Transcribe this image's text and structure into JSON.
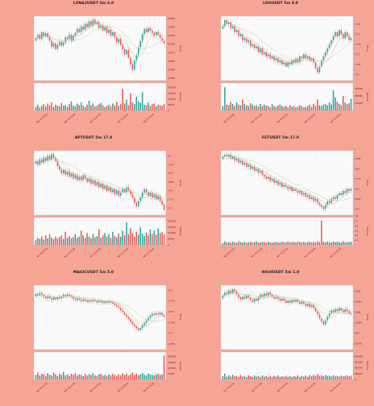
{
  "page": {
    "background": "#f6a595",
    "axes_background": "#fafafa",
    "grid_color": "#dddddd",
    "up_color": "#26a69a",
    "down_color": "#ef5350",
    "ma_colors": [
      "#9e9e9e",
      "#c8b26e",
      "#a6cfa0"
    ],
    "label_color": "#6a0f33"
  },
  "chart_data": [
    {
      "type": "candlestick",
      "title": "LUNA2USDT 5m 6.0",
      "ylabel": "Price",
      "volume_label": "Volume",
      "y_ticks": [
        0.5055,
        0.5045,
        0.5035,
        0.5025,
        0.5015,
        0.5005,
        0.4995,
        0.4985
      ],
      "ylim": [
        0.4982,
        0.5058
      ],
      "volume_ticks": [
        "200000",
        "150000",
        "100000",
        "50000",
        "0"
      ],
      "volume_max": 240000,
      "x_ticks": [
        "Apr 26 00:00",
        "Apr 26 01:00",
        "Apr 26 02:00",
        "Apr 26 03:00",
        "Apr 26 04:00"
      ],
      "closes": [
        0.5032,
        0.5036,
        0.5031,
        0.5039,
        0.5034,
        0.5038,
        0.5033,
        0.5029,
        0.5022,
        0.5026,
        0.5019,
        0.5024,
        0.5028,
        0.5023,
        0.5027,
        0.5033,
        0.5031,
        0.5036,
        0.5029,
        0.5035,
        0.5038,
        0.5043,
        0.5039,
        0.5046,
        0.5042,
        0.5049,
        0.5045,
        0.5052,
        0.5047,
        0.5054,
        0.5049,
        0.5051,
        0.5044,
        0.5047,
        0.5041,
        0.5045,
        0.5038,
        0.5042,
        0.5035,
        0.5039,
        0.5033,
        0.5027,
        0.5031,
        0.5024,
        0.5019,
        0.5013,
        0.5018,
        0.5009,
        0.5001,
        0.4995,
        0.5006,
        0.5012,
        0.5021,
        0.5029,
        0.5037,
        0.5043,
        0.5039,
        0.5044,
        0.5041,
        0.5038,
        0.5035,
        0.5039,
        0.5036,
        0.5032,
        0.5029,
        0.5026
      ],
      "volumes": [
        30000,
        50000,
        25000,
        40000,
        55000,
        35000,
        60000,
        45000,
        70000,
        30000,
        50000,
        40000,
        35000,
        65000,
        40000,
        45000,
        30000,
        55000,
        80000,
        40000,
        35000,
        60000,
        45000,
        70000,
        40000,
        30000,
        50000,
        85000,
        45000,
        60000,
        35000,
        40000,
        55000,
        65000,
        45000,
        30000,
        40000,
        50000,
        35000,
        60000,
        45000,
        75000,
        40000,
        55000,
        190000,
        60000,
        95000,
        45000,
        150000,
        70000,
        55000,
        120000,
        80000,
        65000,
        160000,
        50000,
        45000,
        70000,
        40000,
        55000,
        60000,
        35000,
        50000,
        45000,
        40000,
        55000
      ]
    },
    {
      "type": "candlestick",
      "title": "LDOUSDT 5m 8.0",
      "ylabel": "Price",
      "volume_label": "Volume",
      "y_ticks": [
        2.745,
        2.74,
        2.735,
        2.73,
        2.725,
        2.72
      ],
      "ylim": [
        2.717,
        2.749
      ],
      "volume_ticks": [
        "300000",
        "200000",
        "100000"
      ],
      "volume_max": 380000,
      "x_ticks": [
        "Apr 26 00:00",
        "Apr 26 01:00",
        "Apr 26 02:00",
        "Apr 26 03:00",
        "Apr 26 04:00"
      ],
      "closes": [
        2.744,
        2.747,
        2.745,
        2.746,
        2.743,
        2.744,
        2.741,
        2.742,
        2.739,
        2.74,
        2.737,
        2.738,
        2.736,
        2.737,
        2.734,
        2.735,
        2.733,
        2.734,
        2.731,
        2.733,
        2.73,
        2.731,
        2.729,
        2.73,
        2.728,
        2.729,
        2.727,
        2.728,
        2.726,
        2.727,
        2.725,
        2.726,
        2.724,
        2.726,
        2.725,
        2.727,
        2.726,
        2.728,
        2.726,
        2.729,
        2.728,
        2.73,
        2.728,
        2.729,
        2.727,
        2.728,
        2.726,
        2.723,
        2.721,
        2.724,
        2.727,
        2.729,
        2.731,
        2.733,
        2.735,
        2.737,
        2.739,
        2.741,
        2.739,
        2.742,
        2.74,
        2.738,
        2.741,
        2.739,
        2.737,
        2.738
      ],
      "volumes": [
        60000,
        320000,
        80000,
        70000,
        120000,
        90000,
        60000,
        110000,
        80000,
        70000,
        150000,
        90000,
        70000,
        60000,
        100000,
        80000,
        60000,
        70000,
        50000,
        90000,
        60000,
        80000,
        70000,
        60000,
        40000,
        90000,
        60000,
        50000,
        70000,
        80000,
        60000,
        50000,
        60000,
        40000,
        70000,
        50000,
        60000,
        40000,
        50000,
        70000,
        60000,
        40000,
        50000,
        60000,
        80000,
        50000,
        90000,
        60000,
        150000,
        70000,
        60000,
        80000,
        90000,
        70000,
        110000,
        80000,
        280000,
        180000,
        120000,
        90000,
        70000,
        200000,
        110000,
        90000,
        100000,
        160000
      ]
    },
    {
      "type": "candlestick",
      "title": "APTUSDT 5m 17.0",
      "ylabel": "Price",
      "volume_label": "Volume",
      "y_ticks": [
        5.8,
        5.795,
        5.79,
        5.785,
        5.78,
        5.775,
        5.77
      ],
      "ylim": [
        5.766,
        5.803
      ],
      "volume_ticks": [
        "200000",
        "150000",
        "100000",
        "50000",
        "0"
      ],
      "volume_max": 230000,
      "x_ticks": [
        "Apr 26 00:00",
        "Apr 26 01:00",
        "Apr 26 02:00",
        "Apr 26 03:00",
        "Apr 26 04:00"
      ],
      "closes": [
        5.797,
        5.795,
        5.798,
        5.796,
        5.799,
        5.797,
        5.8,
        5.798,
        5.801,
        5.799,
        5.797,
        5.794,
        5.792,
        5.79,
        5.792,
        5.789,
        5.791,
        5.788,
        5.79,
        5.787,
        5.789,
        5.786,
        5.788,
        5.786,
        5.789,
        5.787,
        5.785,
        5.787,
        5.784,
        5.786,
        5.783,
        5.785,
        5.782,
        5.784,
        5.781,
        5.783,
        5.78,
        5.782,
        5.779,
        5.781,
        5.778,
        5.78,
        5.777,
        5.779,
        5.781,
        5.779,
        5.782,
        5.78,
        5.778,
        5.776,
        5.773,
        5.771,
        5.774,
        5.776,
        5.779,
        5.781,
        5.779,
        5.777,
        5.779,
        5.776,
        5.778,
        5.775,
        5.777,
        5.774,
        5.772,
        5.769
      ],
      "volumes": [
        40000,
        60000,
        50000,
        70000,
        45000,
        80000,
        55000,
        90000,
        60000,
        50000,
        70000,
        55000,
        65000,
        80000,
        50000,
        110000,
        60000,
        75000,
        55000,
        65000,
        90000,
        60000,
        70000,
        120000,
        80000,
        60000,
        100000,
        70000,
        55000,
        90000,
        65000,
        75000,
        130000,
        60000,
        80000,
        100000,
        70000,
        90000,
        60000,
        110000,
        75000,
        65000,
        95000,
        70000,
        120000,
        80000,
        190000,
        90000,
        140000,
        100000,
        70000,
        110000,
        85000,
        150000,
        95000,
        75000,
        105000,
        80000,
        130000,
        90000,
        120000,
        85000,
        140000,
        100000,
        110000,
        90000
      ]
    },
    {
      "type": "candlestick",
      "title": "FETUSDT 5m 17.0",
      "ylabel": "Price",
      "volume_label": "Volume",
      "y_ticks": [
        2.045,
        2.04,
        2.035,
        2.03,
        2.025,
        2.02
      ],
      "ylim": [
        2.017,
        2.049
      ],
      "volume_ticks": [
        "1.0",
        "0.8",
        "0.6",
        "0.4",
        "0.2"
      ],
      "volume_exponent": "1e6",
      "volume_max": 1.15,
      "x_ticks": [
        "Apr 26 00:00",
        "Apr 26 01:00",
        "Apr 26 02:00",
        "Apr 26 03:00",
        "Apr 26 04:00"
      ],
      "closes": [
        2.046,
        2.047,
        2.046,
        2.047,
        2.045,
        2.046,
        2.044,
        2.045,
        2.043,
        2.044,
        2.042,
        2.043,
        2.041,
        2.042,
        2.04,
        2.041,
        2.039,
        2.04,
        2.038,
        2.039,
        2.037,
        2.036,
        2.035,
        2.036,
        2.034,
        2.035,
        2.033,
        2.034,
        2.032,
        2.033,
        2.031,
        2.032,
        2.031,
        2.03,
        2.031,
        2.029,
        2.03,
        2.029,
        2.028,
        2.029,
        2.027,
        2.028,
        2.026,
        2.027,
        2.025,
        2.026,
        2.024,
        2.025,
        2.023,
        2.022,
        2.021,
        2.02,
        2.022,
        2.024,
        2.023,
        2.025,
        2.026,
        2.025,
        2.027,
        2.028,
        2.027,
        2.029,
        2.028,
        2.03,
        2.029,
        2.03
      ],
      "volumes": [
        0.08,
        0.15,
        0.1,
        0.12,
        0.09,
        0.14,
        0.11,
        0.1,
        0.16,
        0.12,
        0.1,
        0.13,
        0.09,
        0.11,
        0.14,
        0.1,
        0.12,
        0.15,
        0.11,
        0.1,
        0.13,
        0.12,
        0.09,
        0.14,
        0.11,
        0.1,
        0.12,
        0.13,
        0.1,
        0.11,
        0.14,
        0.12,
        0.1,
        0.15,
        0.11,
        0.12,
        0.13,
        0.1,
        0.14,
        0.12,
        0.11,
        0.13,
        0.1,
        0.12,
        0.14,
        0.11,
        0.13,
        0.1,
        0.15,
        0.12,
        1.02,
        0.14,
        0.11,
        0.13,
        0.12,
        0.1,
        0.14,
        0.11,
        0.13,
        0.12,
        0.1,
        0.15,
        0.11,
        0.13,
        0.12,
        0.14
      ]
    },
    {
      "type": "candlestick",
      "title": "MAGICUSDT 5m 5.0",
      "ylabel": "Price",
      "volume_label": "Volume",
      "y_ticks": [
        0.74,
        0.7375,
        0.735,
        0.7325,
        0.73,
        0.7275
      ],
      "ylim": [
        0.7262,
        0.7412
      ],
      "volume_ticks": [
        "200000",
        "150000",
        "100000",
        "50000"
      ],
      "volume_max": 240000,
      "x_ticks": [
        "Apr 26 00:00",
        "Apr 26 01:00",
        "Apr 26 02:00",
        "Apr 26 03:00",
        "Apr 26 04:00"
      ],
      "closes": [
        0.7392,
        0.7388,
        0.7394,
        0.7389,
        0.7385,
        0.7381,
        0.7386,
        0.7382,
        0.7378,
        0.7383,
        0.7379,
        0.7384,
        0.7381,
        0.7386,
        0.739,
        0.7387,
        0.7391,
        0.7388,
        0.7385,
        0.738,
        0.7377,
        0.7381,
        0.7378,
        0.7375,
        0.7379,
        0.7376,
        0.7373,
        0.7377,
        0.7374,
        0.7378,
        0.7375,
        0.7372,
        0.7376,
        0.7373,
        0.737,
        0.7374,
        0.7371,
        0.7375,
        0.7372,
        0.7369,
        0.7366,
        0.7363,
        0.7359,
        0.7354,
        0.7349,
        0.7343,
        0.7338,
        0.7333,
        0.7327,
        0.7321,
        0.7316,
        0.7311,
        0.7307,
        0.7312,
        0.7318,
        0.7324,
        0.733,
        0.7336,
        0.7341,
        0.7346,
        0.7343,
        0.7347,
        0.7344,
        0.7348,
        0.7342,
        0.7338
      ],
      "volumes": [
        40000,
        60000,
        35000,
        50000,
        45000,
        30000,
        55000,
        40000,
        35000,
        60000,
        45000,
        30000,
        50000,
        40000,
        65000,
        35000,
        45000,
        30000,
        50000,
        40000,
        55000,
        35000,
        45000,
        40000,
        30000,
        50000,
        35000,
        45000,
        40000,
        55000,
        35000,
        30000,
        45000,
        50000,
        35000,
        40000,
        30000,
        45000,
        35000,
        50000,
        40000,
        30000,
        45000,
        35000,
        55000,
        40000,
        50000,
        35000,
        45000,
        60000,
        40000,
        50000,
        35000,
        45000,
        55000,
        40000,
        35000,
        50000,
        45000,
        40000,
        35000,
        45000,
        50000,
        40000,
        45000,
        210000
      ]
    },
    {
      "type": "candlestick",
      "title": "NIGHUSDT 5m 1.0",
      "ylabel": "Price",
      "volume_label": "Volume",
      "y_ticks": [
        0.082,
        0.0815,
        0.081,
        0.0805,
        0.08,
        0.0795
      ],
      "ylim": [
        0.0792,
        0.0823
      ],
      "volume_ticks": [
        "800000",
        "600000",
        "400000",
        "200000",
        "0"
      ],
      "volume_max": 950000,
      "x_ticks": [
        "Apr 26 00:00",
        "Apr 26 01:00",
        "Apr 26 02:00",
        "Apr 26 03:00",
        "Apr 26 04:00"
      ],
      "closes": [
        0.0818,
        0.08195,
        0.08185,
        0.08205,
        0.0819,
        0.0821,
        0.082,
        0.08185,
        0.0817,
        0.0816,
        0.08175,
        0.08165,
        0.0818,
        0.0817,
        0.0816,
        0.0815,
        0.08165,
        0.08155,
        0.0817,
        0.08185,
        0.08175,
        0.0819,
        0.0818,
        0.08195,
        0.08185,
        0.08175,
        0.08165,
        0.08175,
        0.08165,
        0.08155,
        0.08165,
        0.08155,
        0.08145,
        0.08155,
        0.08145,
        0.0816,
        0.0815,
        0.0816,
        0.0815,
        0.0814,
        0.0815,
        0.0814,
        0.0813,
        0.0814,
        0.08125,
        0.08135,
        0.0812,
        0.08105,
        0.0809,
        0.0807,
        0.08055,
        0.0804,
        0.0806,
        0.0808,
        0.08095,
        0.0811,
        0.081,
        0.08115,
        0.08105,
        0.0812,
        0.0811,
        0.081,
        0.08115,
        0.08105,
        0.08095,
        0.0809
      ],
      "volumes": [
        120000,
        200000,
        90000,
        140000,
        100000,
        160000,
        110000,
        130000,
        90000,
        150000,
        100000,
        120000,
        80000,
        140000,
        110000,
        90000,
        130000,
        100000,
        120000,
        90000,
        140000,
        100000,
        110000,
        80000,
        130000,
        90000,
        120000,
        100000,
        140000,
        90000,
        110000,
        100000,
        130000,
        90000,
        120000,
        80000,
        110000,
        100000,
        140000,
        90000,
        120000,
        100000,
        130000,
        90000,
        150000,
        110000,
        160000,
        120000,
        180000,
        130000,
        140000,
        110000,
        150000,
        120000,
        130000,
        100000,
        140000,
        110000,
        120000,
        100000,
        130000,
        110000,
        120000,
        140000,
        110000,
        130000
      ]
    }
  ]
}
